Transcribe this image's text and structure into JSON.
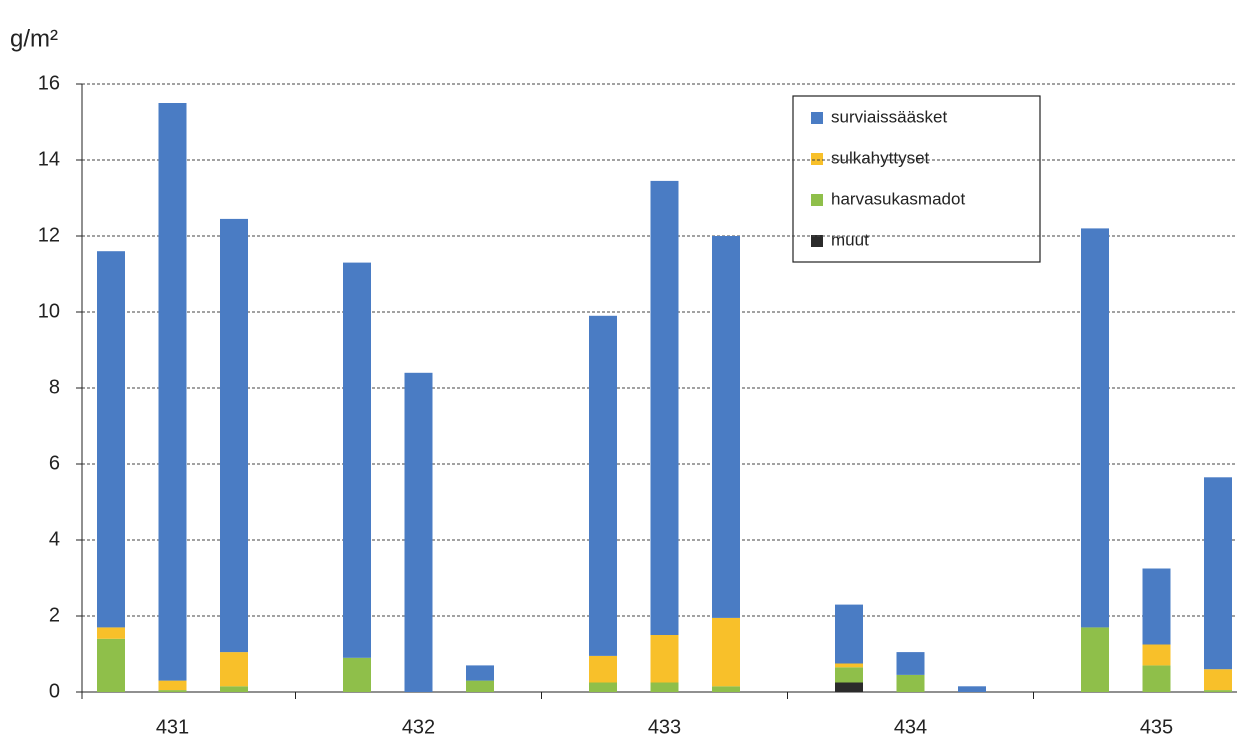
{
  "chart_data": {
    "type": "stacked-bar",
    "y_label": "g/m²",
    "categories": [
      null,
      "431",
      null,
      null,
      "432",
      null,
      null,
      "433",
      null,
      null,
      "434",
      null,
      null,
      "435",
      null
    ],
    "series": [
      {
        "name": "muut",
        "color": "#2b2b2b",
        "values": [
          0,
          0,
          0,
          0,
          0,
          0,
          0,
          0,
          0,
          0.25,
          0,
          0,
          0,
          0,
          0
        ]
      },
      {
        "name": "harvasukasmadot",
        "color": "#8fbf4a",
        "values": [
          1.4,
          0.05,
          0.15,
          0.9,
          0,
          0.3,
          0.25,
          0.25,
          0.15,
          0.4,
          0.45,
          0,
          1.7,
          0.7,
          0.05
        ]
      },
      {
        "name": "sulkahyttyset",
        "color": "#f8c02a",
        "values": [
          0.3,
          0.25,
          0.9,
          0,
          0,
          0,
          0.7,
          1.25,
          1.8,
          0.1,
          0,
          0,
          0,
          0.55,
          0.55
        ]
      },
      {
        "name": "surviaissääsket",
        "color": "#4a7cc4",
        "values": [
          9.9,
          15.2,
          11.4,
          10.4,
          8.4,
          0.4,
          8.95,
          11.95,
          10.05,
          1.55,
          0.6,
          0.15,
          10.5,
          2.0,
          5.05
        ]
      }
    ],
    "ylim": [
      0,
      16
    ],
    "yticks": [
      0,
      2,
      4,
      6,
      8,
      10,
      12,
      14,
      16
    ],
    "grid": true
  }
}
